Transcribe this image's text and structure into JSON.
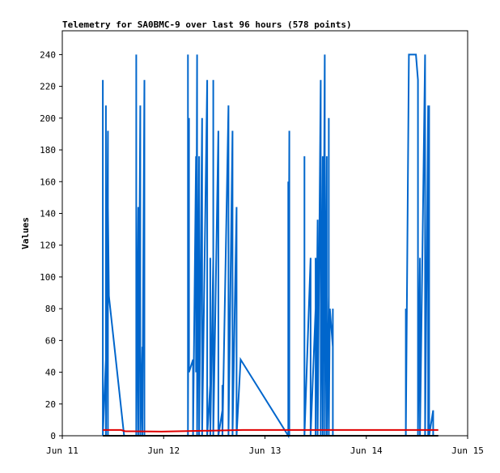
{
  "chart_data": {
    "type": "line",
    "title": "Telemetry for SA0BMC-9 over last 96 hours (578 points)",
    "y_label": "Values",
    "xlim": [
      0,
      4
    ],
    "xticks": [
      {
        "value": 0,
        "label": "Jun 11"
      },
      {
        "value": 1,
        "label": "Jun 12"
      },
      {
        "value": 2,
        "label": "Jun 13"
      },
      {
        "value": 3,
        "label": "Jun 14"
      },
      {
        "value": 4,
        "label": "Jun 15"
      }
    ],
    "ylim": [
      0,
      255
    ],
    "yticks": [
      0,
      20,
      40,
      60,
      80,
      100,
      120,
      140,
      160,
      180,
      200,
      220,
      240
    ],
    "series": [
      {
        "color": "#0066cc",
        "x": [
          0.4,
          0.4,
          0.4,
          0.43,
          0.43,
          0.43,
          0.45,
          0.45,
          0.45,
          0.46,
          0.61,
          0.73,
          0.73,
          0.73,
          0.73,
          0.75,
          0.75,
          0.75,
          0.77,
          0.77,
          0.77,
          0.79,
          0.79,
          0.81,
          0.81,
          1.24,
          1.24,
          1.24,
          1.24,
          1.25,
          1.25,
          1.25,
          1.29,
          1.29,
          1.29,
          1.32,
          1.32,
          1.33,
          1.33,
          1.35,
          1.35,
          1.35,
          1.38,
          1.38,
          1.43,
          1.43,
          1.46,
          1.46,
          1.46,
          1.49,
          1.49,
          1.49,
          1.54,
          1.54,
          1.58,
          1.58,
          1.58,
          1.64,
          1.64,
          1.64,
          1.68,
          1.68,
          1.68,
          1.72,
          1.72,
          1.76,
          2.23,
          2.23,
          2.23,
          2.24,
          2.24,
          2.24,
          2.27,
          2.39,
          2.39,
          2.39,
          2.45,
          2.45,
          2.5,
          2.5,
          2.5,
          2.52,
          2.52,
          2.55,
          2.55,
          2.57,
          2.57,
          2.59,
          2.59,
          2.61,
          2.61,
          2.63,
          2.63,
          2.63,
          2.64,
          2.67,
          2.67,
          2.67,
          3.39,
          3.39,
          3.39,
          3.42,
          3.49,
          3.51,
          3.51,
          3.51,
          3.53,
          3.53,
          3.58,
          3.58,
          3.61,
          3.61,
          3.62,
          3.62,
          3.66,
          3.66
        ],
        "values": [
          0,
          224,
          0,
          48,
          208,
          0,
          192,
          0,
          144,
          88,
          0,
          0,
          40,
          240,
          0,
          144,
          128,
          0,
          208,
          64,
          0,
          56,
          0,
          224,
          0,
          0,
          128,
          240,
          0,
          200,
          120,
          40,
          48,
          40,
          0,
          176,
          40,
          240,
          0,
          176,
          160,
          0,
          200,
          0,
          224,
          0,
          32,
          112,
          0,
          112,
          224,
          0,
          192,
          0,
          16,
          32,
          0,
          208,
          16,
          0,
          192,
          176,
          0,
          144,
          0,
          48,
          0,
          160,
          0,
          192,
          128,
          0,
          0,
          0,
          176,
          0,
          112,
          0,
          80,
          112,
          0,
          136,
          0,
          224,
          0,
          176,
          0,
          240,
          0,
          176,
          0,
          88,
          200,
          0,
          80,
          56,
          80,
          0,
          0,
          80,
          0,
          240,
          240,
          224,
          128,
          0,
          112,
          0,
          240,
          0,
          208,
          0,
          208,
          0,
          16,
          0
        ]
      },
      {
        "color": "#e00000",
        "x": [
          0.4,
          0.58,
          0.62,
          0.7,
          0.98,
          1.46,
          1.78,
          3.71
        ],
        "values": [
          3.6,
          3.6,
          2.8,
          2.8,
          2.6,
          3.2,
          3.6,
          3.6
        ]
      },
      {
        "color": "#000000",
        "x": [
          0.4,
          3.71
        ],
        "values": [
          0,
          0
        ]
      }
    ]
  }
}
